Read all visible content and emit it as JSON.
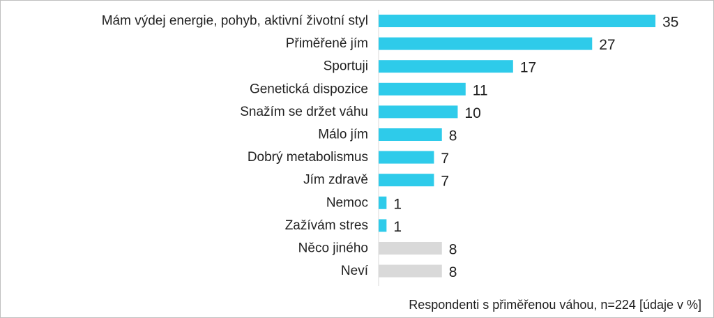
{
  "chart_data": {
    "type": "bar",
    "orientation": "horizontal",
    "categories": [
      "Mám výdej energie, pohyb, aktivní životní styl",
      "Přiměřeně jím",
      "Sportuji",
      "Genetická dispozice",
      "Snažím se držet váhu",
      "Málo jím",
      "Dobrý metabolismus",
      "Jím zdravě",
      "Nemoc",
      "Zažívám stres",
      "Něco jiného",
      "Neví"
    ],
    "values": [
      35,
      27,
      17,
      11,
      10,
      8,
      7,
      7,
      1,
      1,
      8,
      8
    ],
    "xlim": [
      0,
      35
    ],
    "grid": false,
    "colors": {
      "primary": "#2ecbea",
      "secondary": "#d9d9d9"
    },
    "secondary_categories": [
      "Něco jiného",
      "Neví"
    ]
  },
  "footnote": "Respondenti s přiměřenou váhou, n=224 [údaje v %]"
}
